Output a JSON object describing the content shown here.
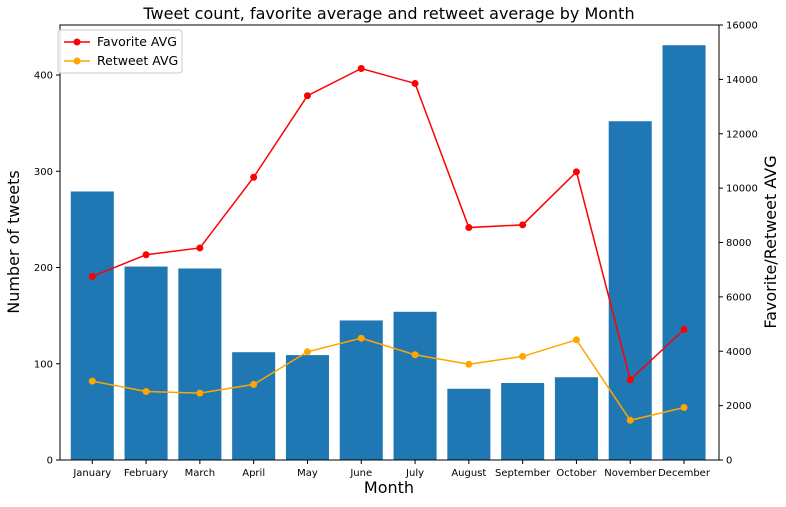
{
  "chart_data": {
    "type": "bar",
    "title": "Tweet count, favorite average and retweet average by Month",
    "xlabel": "Month",
    "ylabel": "Number of tweets",
    "y2label": "Favorite/Retweet AVG",
    "categories": [
      "January",
      "February",
      "March",
      "April",
      "May",
      "June",
      "July",
      "August",
      "September",
      "October",
      "November",
      "December"
    ],
    "bar_series": {
      "name": "",
      "color": "#1f77b4",
      "values": [
        279,
        201,
        199,
        112,
        109,
        145,
        154,
        74,
        80,
        86,
        352,
        431
      ]
    },
    "line_series": [
      {
        "name": "Favorite AVG",
        "color": "#ff0000",
        "values": [
          6750,
          7550,
          7800,
          10400,
          13400,
          14400,
          13850,
          8550,
          8650,
          10600,
          2950,
          4800
        ]
      },
      {
        "name": "Retweet AVG",
        "color": "#ffa500",
        "values": [
          2900,
          2520,
          2460,
          2780,
          3980,
          4480,
          3870,
          3520,
          3810,
          4420,
          1460,
          1930
        ]
      }
    ],
    "ylim": [
      0,
      452
    ],
    "yticks": [
      0,
      100,
      200,
      300,
      400
    ],
    "y2lim": [
      0,
      16000
    ],
    "y2ticks": [
      0,
      2000,
      4000,
      6000,
      8000,
      10000,
      12000,
      14000,
      16000
    ],
    "grid": false,
    "legend_position": "top-left"
  }
}
